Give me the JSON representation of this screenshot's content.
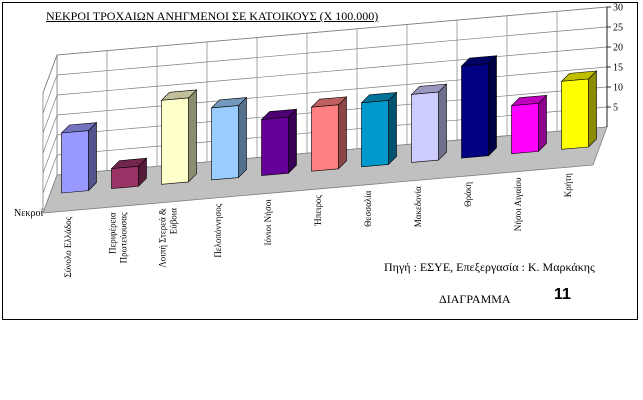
{
  "chart_data": {
    "type": "bar",
    "title": "ΝΕΚΡΟΙ ΤΡΟΧΑΙΩΝ ΑΝΗΓΜΕΝΟΙ ΣΕ ΚΑΤΟΙΚΟΥΣ (Χ 100.000)",
    "ylabel": "Νεκροί",
    "ylim": [
      0,
      30
    ],
    "yticks": [
      "5",
      "10",
      "15",
      "20",
      "25",
      "30"
    ],
    "categories": [
      "Σύνολο Ελλάδος",
      "Περιφέρεια Πρωτεύουσας",
      "Λοιπή Στερεά & Εύβοια",
      "Πελοπόννησος",
      "Ιόνιοι Νήσοι",
      "Ήπειρος",
      "Θεσσαλία",
      "Μακεδονία",
      "Θράκη",
      "Νήσοι Αιγαίου",
      "Κρήτη"
    ],
    "category_lines": [
      [
        "Σύνολο Ελλάδος"
      ],
      [
        "Περιφέρεια",
        "Πρωτεύουσας"
      ],
      [
        "Λοιπή Στερεά &",
        "Εύβοια"
      ],
      [
        "Πελοπόννησος"
      ],
      [
        "Ιόνιοι Νήσοι"
      ],
      [
        "Ήπειρος"
      ],
      [
        "Θεσσαλία"
      ],
      [
        "Μακεδονία"
      ],
      [
        "Θράκη"
      ],
      [
        "Νήσοι Αιγαίου"
      ],
      [
        "Κρήτη"
      ]
    ],
    "values": [
      15,
      5,
      21,
      18,
      14,
      16,
      16,
      17,
      23,
      12,
      17
    ],
    "colors": [
      "#9999ff",
      "#993366",
      "#ffffcc",
      "#99ccff",
      "#660099",
      "#ff8080",
      "#0099cc",
      "#ccccff",
      "#000080",
      "#ff00ff",
      "#ffff00"
    ],
    "grid": true,
    "legend": "none"
  },
  "source_text": "Πηγή : ΕΣΥΕ,  Επεξεργασία : Κ. Μαρκάκης",
  "diagram_label": "ΔΙΑΓΡΑΜΜΑ",
  "diagram_number": "11"
}
